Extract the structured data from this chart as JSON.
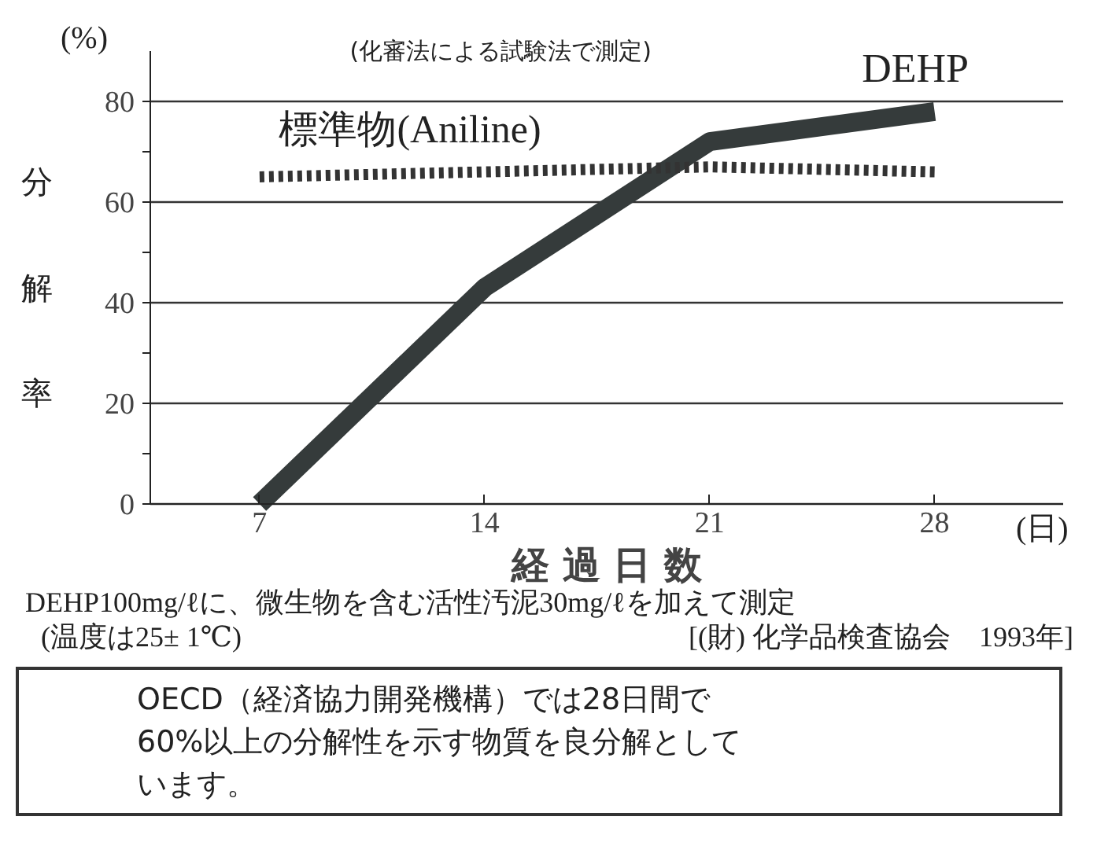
{
  "chart_data": {
    "type": "line",
    "subtitle": "(化審法による試験法で測定)",
    "xlabel": "経 過 日 数",
    "ylabel": "分解率",
    "x": [
      7,
      14,
      21,
      28
    ],
    "series": [
      {
        "name": "DEHP",
        "color": "#353b3b",
        "values": [
          0,
          43,
          72,
          78
        ],
        "line_style": "solid"
      },
      {
        "name": "標準物(Aniline)",
        "color": "#333333",
        "values": [
          65,
          66,
          67,
          66
        ],
        "line_style": "dotted"
      }
    ],
    "xlim": [
      3.6,
      32
    ],
    "ylim": [
      0,
      90
    ],
    "xticks": [
      7,
      14,
      21,
      28
    ],
    "yticks": [
      0,
      {
        "value": 10,
        "label": null
      },
      20,
      {
        "value": 30,
        "label": null
      },
      40,
      {
        "value": 50,
        "label": null
      },
      60,
      {
        "value": 70,
        "label": null
      },
      80
    ],
    "grid": "y",
    "marker": "none",
    "annotations": [
      "(%)",
      "(日)",
      "DEHP100mg/ℓに、微生物を含む活性汚泥30mg/ℓを加えて測定",
      "(温度は25± 1℃)",
      "[(財) 化学品検査協会　1993年]",
      "OECD（経済協力開発機構）では28日間で60%以上の分解性を示す物質を良分解としています。"
    ]
  }
}
